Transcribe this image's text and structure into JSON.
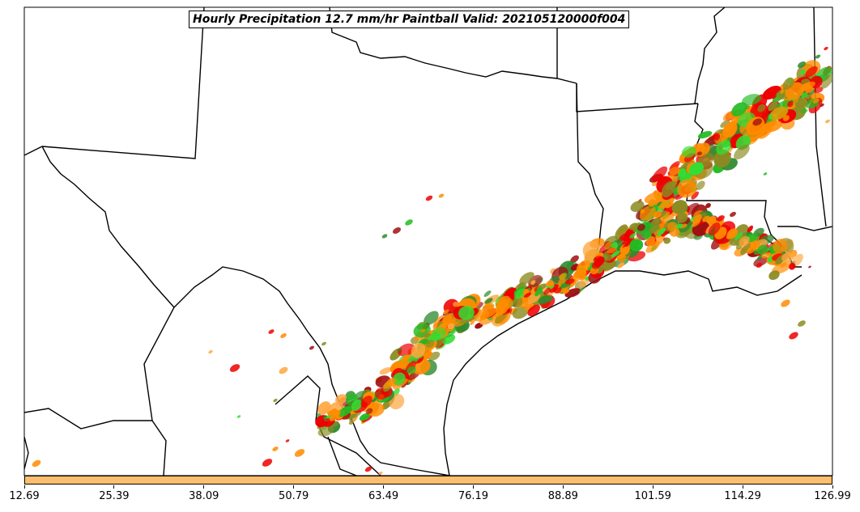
{
  "title": "Hourly Precipitation 12.7 mm/hr Paintball Valid: 202105120000f004",
  "colorbar": {
    "color": "#fdbf6f",
    "ticks": [
      "12.69",
      "25.39",
      "38.09",
      "50.79",
      "63.49",
      "76.19",
      "88.89",
      "101.59",
      "114.29",
      "126.99"
    ]
  },
  "palette": {
    "orange": "#ff8c00",
    "light_orange": "#ffa640",
    "red": "#ee0000",
    "dark_red": "#a01010",
    "green": "#22bb22",
    "lime": "#33dd33",
    "dark_green": "#2d8a2d",
    "olive": "#8b8b22",
    "gray": "#555555",
    "border": "#000000"
  }
}
